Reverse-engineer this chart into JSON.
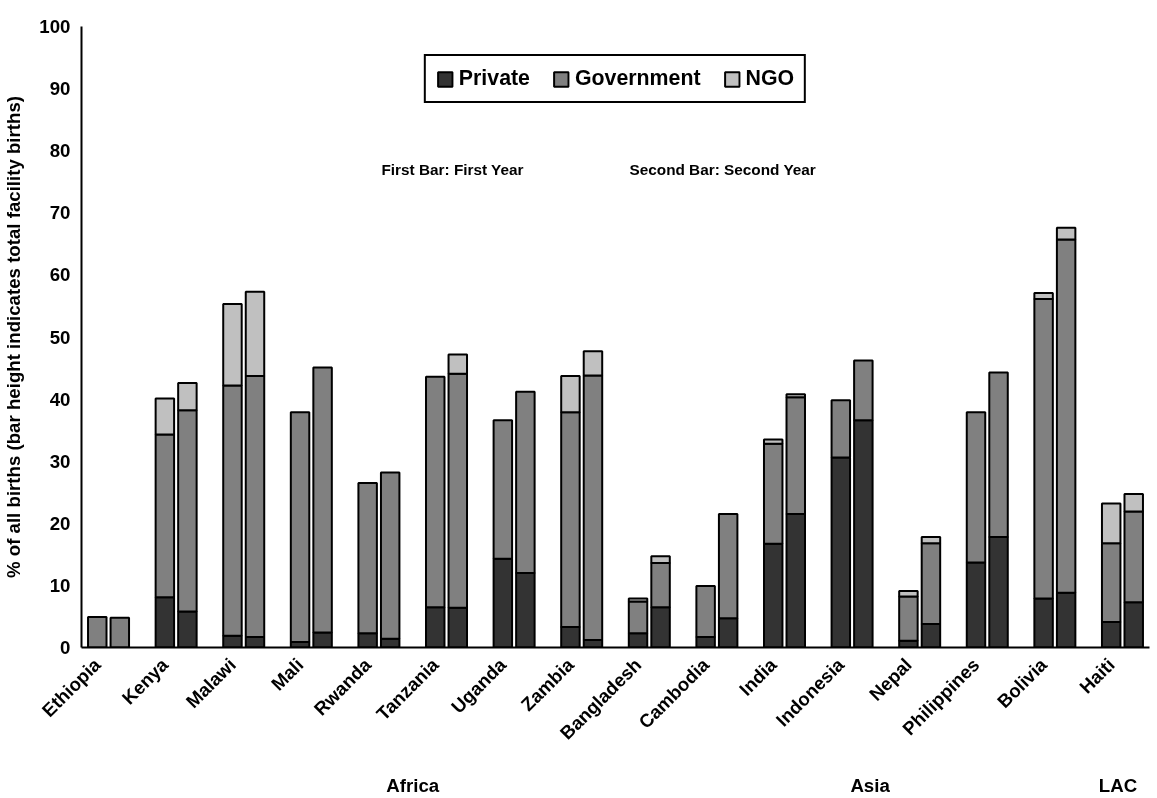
{
  "chart_data": {
    "type": "bar",
    "stacked": true,
    "ylabel": "% of all births (bar height indicates total facility births)",
    "categories": [
      "Ethiopia",
      null,
      "Kenya",
      null,
      "Malawi",
      null,
      "Mali",
      null,
      "Rwanda",
      null,
      "Tanzania",
      null,
      "Uganda",
      null,
      "Zambia",
      null,
      "Bangladesh",
      null,
      "Cambodia",
      null,
      "India",
      null,
      "Indonesia",
      null,
      "Nepal",
      null,
      "Philippines",
      null,
      "Bolivia",
      null,
      "Haiti",
      null
    ],
    "series": [
      {
        "name": "Private",
        "color": "#333333",
        "values": [
          null,
          null,
          8.1,
          5.8,
          1.9,
          1.7,
          0.9,
          2.4,
          2.3,
          1.4,
          6.5,
          6.4,
          14.3,
          12.0,
          3.3,
          1.2,
          2.3,
          6.5,
          1.7,
          4.7,
          16.7,
          21.5,
          30.6,
          36.6,
          1.1,
          3.8,
          13.7,
          17.8,
          7.9,
          8.8,
          4.1,
          7.3
        ]
      },
      {
        "name": "Government",
        "color": "#808080",
        "values": [
          4.9,
          4.8,
          26.2,
          32.4,
          40.3,
          42.0,
          37.0,
          42.7,
          24.2,
          26.8,
          37.1,
          37.7,
          22.3,
          29.2,
          34.6,
          42.6,
          5.1,
          7.1,
          8.2,
          16.8,
          16.1,
          18.8,
          9.2,
          9.6,
          7.1,
          13.0,
          24.2,
          26.5,
          48.2,
          56.9,
          12.7,
          14.6
        ]
      },
      {
        "name": "NGO",
        "color": "#c0c0c0",
        "values": [
          null,
          null,
          5.8,
          4.4,
          13.1,
          13.6,
          null,
          null,
          null,
          null,
          null,
          3.1,
          null,
          null,
          5.8,
          3.9,
          0.5,
          1.1,
          null,
          null,
          0.7,
          0.5,
          null,
          null,
          0.9,
          1.0,
          null,
          null,
          1.0,
          1.9,
          6.4,
          2.8
        ]
      }
    ],
    "ylim": [
      0,
      100
    ],
    "yticks": [
      0,
      10,
      20,
      30,
      40,
      50,
      60,
      70,
      80,
      90,
      100
    ],
    "legend": "top",
    "annotations": [
      "First Bar: First Year",
      "Second Bar: Second Year",
      "Africa",
      "Asia",
      "LAC"
    ]
  }
}
